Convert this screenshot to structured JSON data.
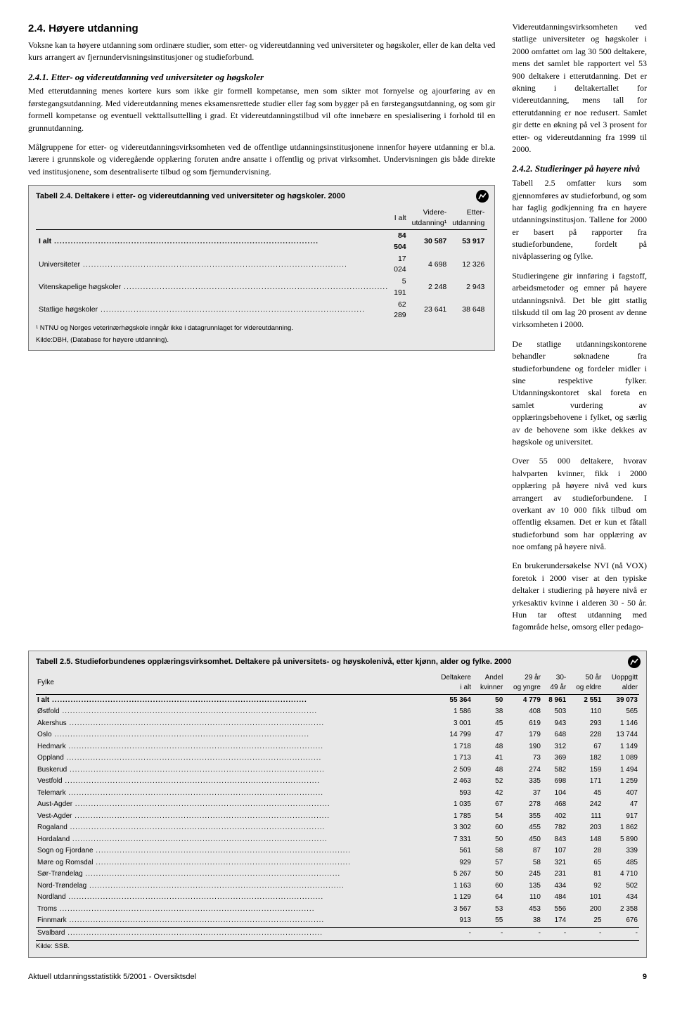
{
  "left": {
    "h2": "2.4. Høyere utdanning",
    "p1": "Voksne kan ta høyere utdanning som ordinære studier, som etter- og videreutdanning ved universiteter og høgskoler, eller de kan delta ved kurs arrangert av fjernundervisningsinstitusjoner og studieforbund.",
    "h3a": "2.4.1. Etter- og videreutdanning ved universiteter og høgskoler",
    "p2": "Med etterutdanning menes kortere kurs som ikke gir formell kompetanse, men som sikter mot fornyelse og ajourføring av en førstegangsutdanning. Med videreutdanning menes eksamensrettede studier eller fag som bygger på en førstegangsutdanning, og som gir formell kompetanse og eventuell vekttallsuttelling i grad. Et videreutdanningstilbud vil ofte innebære en spesialisering i forhold til en grunnutdanning.",
    "p3": "Målgruppene for etter- og videreutdanningsvirksomheten ved de offentlige utdanningsinstitusjonene innenfor høyere utdanning er bl.a. lærere i grunnskole og videregående opplæring foruten andre ansatte i offentlig og privat virksomhet. Undervisningen gis både direkte ved institusjonene, som desentraliserte tilbud og som fjernundervisning."
  },
  "table24": {
    "title": "Tabell 2.4. Deltakere i etter- og videreutdanning ved universiteter og høgskoler. 2000",
    "head": [
      "",
      "I alt",
      "Videre-\nutdanning¹",
      "Etter-\nutdanning"
    ],
    "rows": [
      {
        "label": "I alt",
        "bold": true,
        "vals": [
          "84 504",
          "30 587",
          "53 917"
        ]
      },
      {
        "label": "Universiteter",
        "vals": [
          "17 024",
          "4 698",
          "12 326"
        ]
      },
      {
        "label": "Vitenskapelige høgskoler",
        "vals": [
          "5 191",
          "2 248",
          "2 943"
        ]
      },
      {
        "label": "Statlige høgskoler",
        "vals": [
          "62 289",
          "23 641",
          "38 648"
        ]
      }
    ],
    "foot1": "¹ NTNU og Norges veterinærhøgskole inngår ikke i datagrunnlaget for videreutdanning.",
    "foot2": "Kilde:DBH, (Database for høyere utdanning)."
  },
  "right": {
    "p1": "Videreutdanningsvirksomheten ved statlige universiteter og høgskoler i 2000 omfattet om lag 30 500 deltakere, mens det samlet ble rapportert vel 53 900 deltakere i etterutdanning. Det er økning i deltakertallet for videreutdanning, mens tall for etterutdanning er noe redusert. Samlet gir dette en økning på vel 3 prosent for etter- og videreutdanning fra 1999 til 2000.",
    "h3b": "2.4.2. Studieringer på høyere nivå",
    "p2": "Tabell 2.5 omfatter kurs som gjennomføres av studieforbund, og som har faglig godkjenning fra en høyere utdanningsinstitusjon. Tallene for 2000 er basert på rapporter fra studieforbundene, fordelt på nivåplassering og fylke.",
    "p3": "Studieringene gir innføring i fagstoff, arbeidsmetoder og emner på høyere utdanningsnivå. Det ble gitt statlig tilskudd til om lag 20 prosent av denne virksomheten i 2000.",
    "p4": "De statlige utdanningskontorene behandler søknadene fra studieforbundene og fordeler midler i sine respektive fylker. Utdanningskontoret skal foreta en samlet vurdering av opplæringsbehovene i fylket, og særlig av de behovene som ikke dekkes av høgskole og universitet.",
    "p5": "Over 55 000 deltakere, hvorav halvparten kvinner, fikk i 2000 opplæring på høyere nivå ved kurs arrangert av studieforbundene. I overkant av 10 000 fikk tilbud om offentlig eksamen. Det er kun et fåtall studieforbund som har opplæring av noe omfang på høyere nivå.",
    "p6": "En brukerundersøkelse NVI (nå VOX) foretok i 2000 viser at den typiske deltaker i studiering på høyere nivå er yrkesaktiv kvinne i alderen 30 - 50 år. Hun tar oftest utdanning med fagområde helse, omsorg eller pedago-"
  },
  "table25": {
    "title": "Tabell 2.5. Studieforbundenes opplæringsvirksomhet. Deltakere på universitets- og høyskolenivå, etter kjønn, alder og fylke. 2000",
    "head": [
      "Fylke",
      "Deltakere\ni alt",
      "Andel\nkvinner",
      "29 år\nog yngre",
      "30-\n49 år",
      "50 år\nog eldre",
      "Uoppgitt\nalder"
    ],
    "rows": [
      {
        "label": "I alt",
        "bold": true,
        "vals": [
          "55 364",
          "50",
          "4 779",
          "8 961",
          "2 551",
          "39 073"
        ]
      },
      {
        "label": "Østfold",
        "vals": [
          "1 586",
          "38",
          "408",
          "503",
          "110",
          "565"
        ]
      },
      {
        "label": "Akershus",
        "vals": [
          "3 001",
          "45",
          "619",
          "943",
          "293",
          "1 146"
        ]
      },
      {
        "label": "Oslo",
        "vals": [
          "14 799",
          "47",
          "179",
          "648",
          "228",
          "13 744"
        ]
      },
      {
        "label": "Hedmark",
        "vals": [
          "1 718",
          "48",
          "190",
          "312",
          "67",
          "1 149"
        ]
      },
      {
        "label": "Oppland",
        "vals": [
          "1 713",
          "41",
          "73",
          "369",
          "182",
          "1 089"
        ]
      },
      {
        "label": "Buskerud",
        "vals": [
          "2 509",
          "48",
          "274",
          "582",
          "159",
          "1 494"
        ]
      },
      {
        "label": "Vestfold",
        "vals": [
          "2 463",
          "52",
          "335",
          "698",
          "171",
          "1 259"
        ]
      },
      {
        "label": "Telemark",
        "vals": [
          "593",
          "42",
          "37",
          "104",
          "45",
          "407"
        ]
      },
      {
        "label": "Aust-Agder",
        "vals": [
          "1 035",
          "67",
          "278",
          "468",
          "242",
          "47"
        ]
      },
      {
        "label": "Vest-Agder",
        "vals": [
          "1 785",
          "54",
          "355",
          "402",
          "111",
          "917"
        ]
      },
      {
        "label": "Rogaland",
        "vals": [
          "3 302",
          "60",
          "455",
          "782",
          "203",
          "1 862"
        ]
      },
      {
        "label": "Hordaland",
        "vals": [
          "7 331",
          "50",
          "450",
          "843",
          "148",
          "5 890"
        ]
      },
      {
        "label": "Sogn og Fjordane",
        "vals": [
          "561",
          "58",
          "87",
          "107",
          "28",
          "339"
        ]
      },
      {
        "label": "Møre og Romsdal",
        "vals": [
          "929",
          "57",
          "58",
          "321",
          "65",
          "485"
        ]
      },
      {
        "label": "Sør-Trøndelag",
        "vals": [
          "5 267",
          "50",
          "245",
          "231",
          "81",
          "4 710"
        ]
      },
      {
        "label": "Nord-Trøndelag",
        "vals": [
          "1 163",
          "60",
          "135",
          "434",
          "92",
          "502"
        ]
      },
      {
        "label": "Nordland",
        "vals": [
          "1 129",
          "64",
          "110",
          "484",
          "101",
          "434"
        ]
      },
      {
        "label": "Troms",
        "vals": [
          "3 567",
          "53",
          "453",
          "556",
          "200",
          "2 358"
        ]
      },
      {
        "label": "Finnmark",
        "vals": [
          "913",
          "55",
          "38",
          "174",
          "25",
          "676"
        ]
      }
    ],
    "svalbard": {
      "label": "Svalbard",
      "vals": [
        "-",
        "-",
        "-",
        "-",
        "-",
        "-"
      ]
    },
    "source": "Kilde: SSB."
  },
  "footer": {
    "text": "Aktuell utdanningsstatistikk 5/2001 - Oversiktsdel",
    "page": "9"
  }
}
